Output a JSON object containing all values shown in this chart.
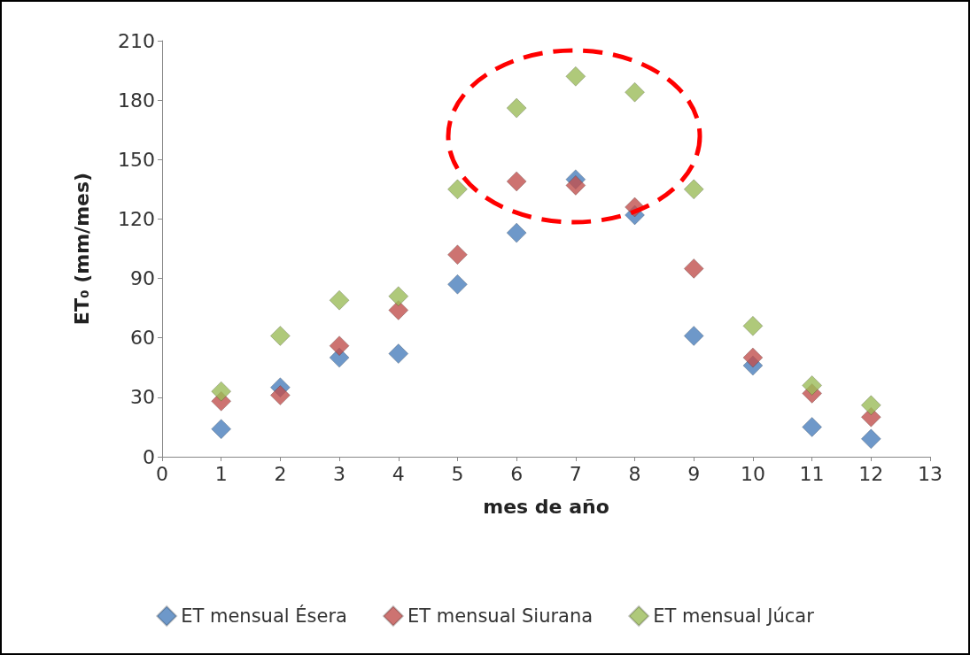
{
  "chart_data": {
    "type": "scatter",
    "xlabel": "mes de año",
    "ylabel": "ET₀ (mm/mes)",
    "x": [
      1,
      2,
      3,
      4,
      5,
      6,
      7,
      8,
      9,
      10,
      11,
      12
    ],
    "series": [
      {
        "name": "ET mensual Ésera",
        "color": "#4a7ebb",
        "values": [
          14,
          35,
          50,
          52,
          87,
          113,
          140,
          122,
          61,
          46,
          15,
          9
        ]
      },
      {
        "name": "ET mensual Siurana",
        "color": "#c0504d",
        "values": [
          28,
          31,
          56,
          74,
          102,
          139,
          137,
          126,
          95,
          50,
          32,
          20
        ]
      },
      {
        "name": "ET mensual Júcar",
        "color": "#9bbb59",
        "values": [
          33,
          61,
          79,
          81,
          135,
          176,
          192,
          184,
          135,
          66,
          36,
          26
        ]
      }
    ],
    "xlim": [
      0,
      13
    ],
    "xticks": [
      0,
      1,
      2,
      3,
      4,
      5,
      6,
      7,
      8,
      9,
      10,
      11,
      12,
      13
    ],
    "ylim": [
      0,
      210
    ],
    "yticks": [
      0,
      30,
      60,
      90,
      120,
      150,
      180,
      210
    ],
    "grid": false,
    "legend": "bottom",
    "marker": "diamond"
  }
}
